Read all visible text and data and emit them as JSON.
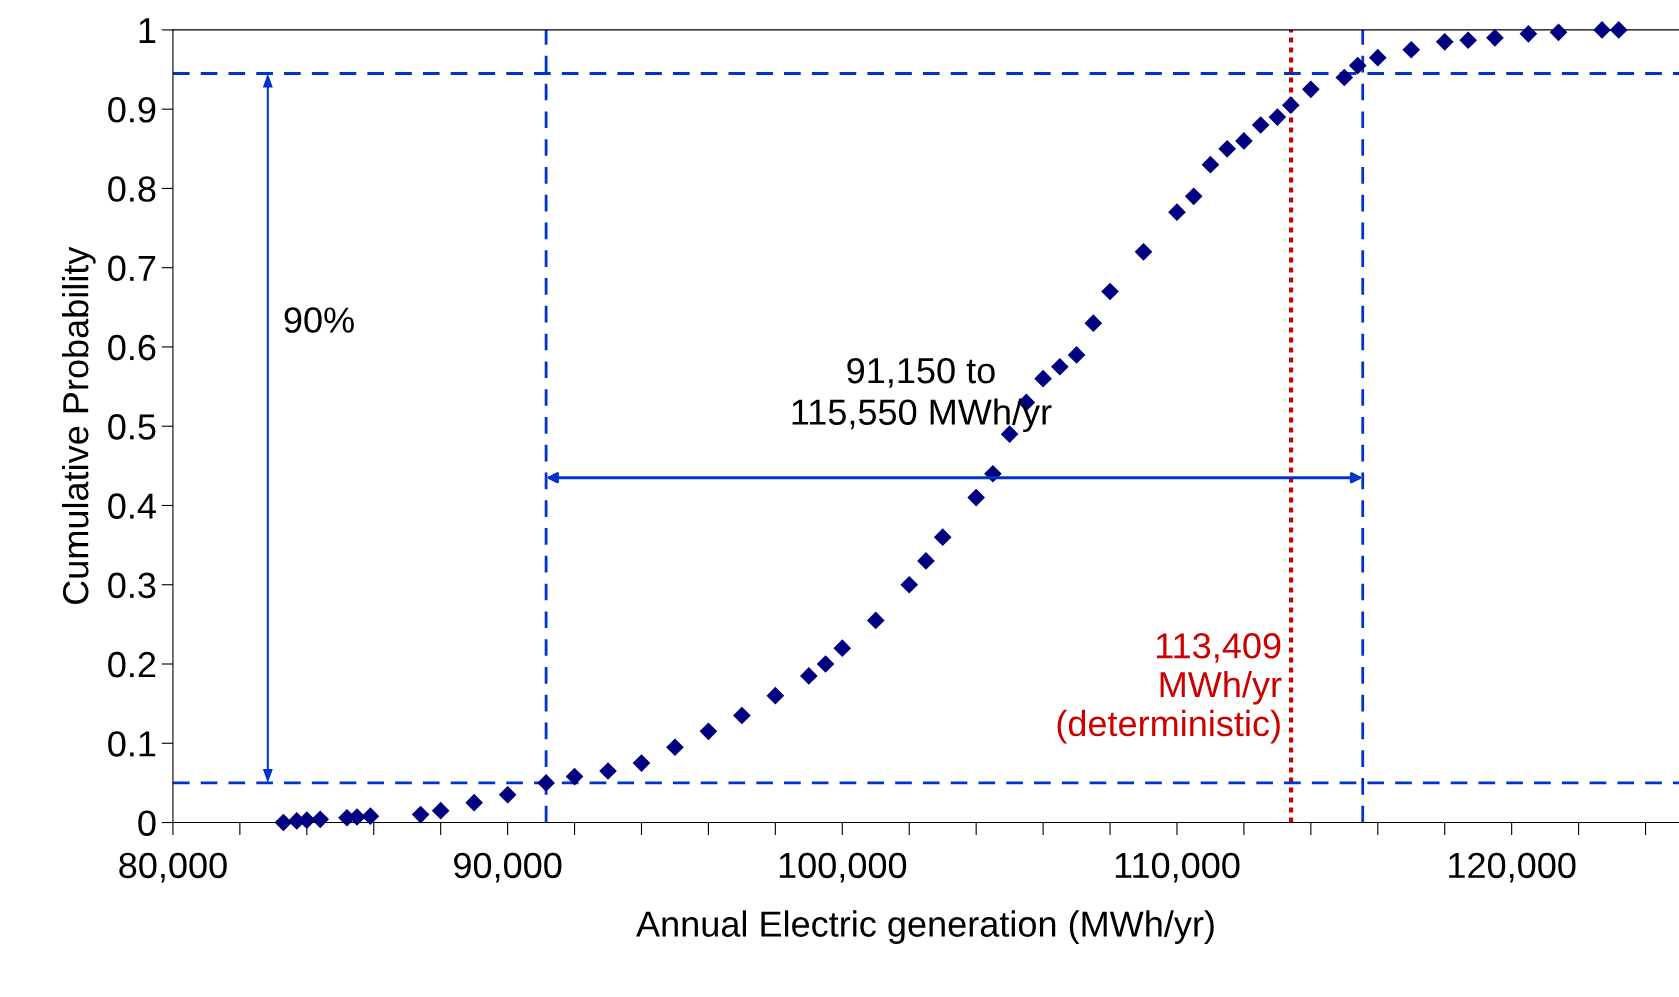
{
  "chart_data": {
    "type": "scatter",
    "xlabel": "Annual Electric generation (MWh/yr)",
    "ylabel": "Cumulative Probability",
    "x": [
      83300,
      83700,
      84000,
      84400,
      85200,
      85500,
      85900,
      87400,
      88000,
      89000,
      90000,
      91150,
      92000,
      93000,
      94000,
      95000,
      96000,
      97000,
      98000,
      99000,
      99500,
      100000,
      101000,
      102000,
      102500,
      103000,
      104000,
      104500,
      105000,
      105500,
      106000,
      106500,
      107000,
      107500,
      108000,
      109000,
      110000,
      110500,
      111000,
      111500,
      112000,
      112500,
      113000,
      113400,
      114000,
      115000,
      115400,
      116000,
      117000,
      118000,
      118700,
      119500,
      120500,
      121400,
      122700,
      123200
    ],
    "series": [
      {
        "color": "#000080",
        "values": [
          0,
          0.002,
          0.003,
          0.004,
          0.006,
          0.007,
          0.008,
          0.01,
          0.015,
          0.025,
          0.035,
          0.05,
          0.058,
          0.065,
          0.075,
          0.095,
          0.115,
          0.135,
          0.16,
          0.185,
          0.2,
          0.22,
          0.255,
          0.3,
          0.33,
          0.36,
          0.41,
          0.44,
          0.49,
          0.53,
          0.56,
          0.575,
          0.59,
          0.63,
          0.67,
          0.72,
          0.77,
          0.79,
          0.83,
          0.85,
          0.86,
          0.88,
          0.89,
          0.905,
          0.925,
          0.94,
          0.955,
          0.965,
          0.975,
          0.985,
          0.987,
          0.99,
          0.995,
          0.997,
          1.0,
          1.0
        ]
      }
    ],
    "marker": "diamond",
    "grid": false,
    "legend": false,
    "xlim": [
      80000,
      125000
    ],
    "xticks": [
      {
        "value": 80000,
        "label": "80,000"
      },
      {
        "value": 82000,
        "label": null
      },
      {
        "value": 84000,
        "label": null
      },
      {
        "value": 86000,
        "label": null
      },
      {
        "value": 88000,
        "label": null
      },
      {
        "value": 90000,
        "label": "90,000"
      },
      {
        "value": 92000,
        "label": null
      },
      {
        "value": 94000,
        "label": null
      },
      {
        "value": 96000,
        "label": null
      },
      {
        "value": 98000,
        "label": null
      },
      {
        "value": 100000,
        "label": "100,000"
      },
      {
        "value": 102000,
        "label": null
      },
      {
        "value": 104000,
        "label": null
      },
      {
        "value": 106000,
        "label": null
      },
      {
        "value": 108000,
        "label": null
      },
      {
        "value": 110000,
        "label": "110,000"
      },
      {
        "value": 112000,
        "label": null
      },
      {
        "value": 114000,
        "label": null
      },
      {
        "value": 116000,
        "label": null
      },
      {
        "value": 118000,
        "label": null
      },
      {
        "value": 120000,
        "label": "120,000"
      },
      {
        "value": 122000,
        "label": null
      },
      {
        "value": 124000,
        "label": null
      }
    ],
    "ylim": [
      0,
      1
    ],
    "yticks": [
      0,
      0.1,
      0.2,
      0.3,
      0.4,
      0.5,
      0.6,
      0.7,
      0.8,
      0.9,
      1
    ],
    "ref_lines": [
      {
        "axis": "x",
        "value": 113409,
        "label": "113,409\nMWh/yr\n(deterministic)",
        "color": "#cc0000",
        "line_style": "dotted"
      },
      {
        "axis": "x",
        "value": 91150,
        "color": "#0033cc",
        "line_style": "dashed"
      },
      {
        "axis": "x",
        "value": 115550,
        "color": "#0033cc",
        "line_style": "dashed"
      },
      {
        "axis": "y",
        "value": 0.05,
        "color": "#0033cc",
        "line_style": "dashed"
      },
      {
        "axis": "y",
        "value": 0.945,
        "color": "#0033cc",
        "line_style": "dashed"
      }
    ],
    "annotations": [
      "90%",
      "91,150 to\n115,550 MWh/yr"
    ]
  }
}
